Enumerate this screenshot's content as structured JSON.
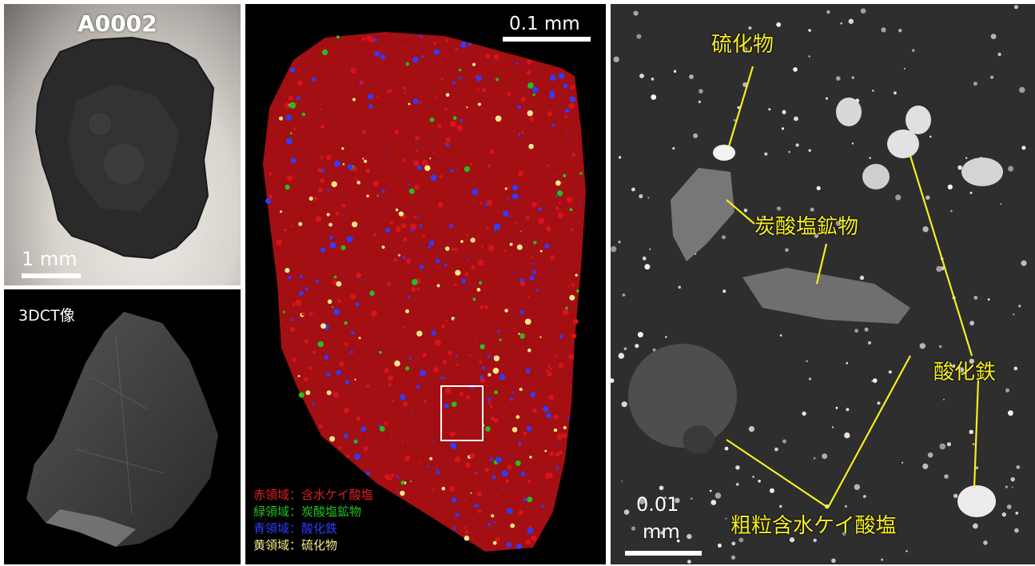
{
  "photo": {
    "sample_id": "A0002",
    "scale_label": "1 mm"
  },
  "ct": {
    "label": "3DCT像"
  },
  "map": {
    "scale_label": "0.1 mm",
    "legend": [
      {
        "region": "赤領域：",
        "mineral": "含水ケイ酸塩",
        "color": "#e02020"
      },
      {
        "region": "緑領域：",
        "mineral": "炭酸塩鉱物",
        "color": "#22c022"
      },
      {
        "region": "青領域：",
        "mineral": "酸化鉄",
        "color": "#2f3cff"
      },
      {
        "region": "黄領域：",
        "mineral": "硫化物",
        "color": "#f2ea8a"
      }
    ]
  },
  "bse": {
    "scale_number": "0.01",
    "scale_unit": "mm",
    "labels": {
      "sulfide": "硫化物",
      "carbonate": "炭酸塩鉱物",
      "iron_oxide": "酸化鉄",
      "coarse_phyllosilicate": "粗粒含水ケイ酸塩"
    },
    "label_color": "#f6ee1f"
  }
}
